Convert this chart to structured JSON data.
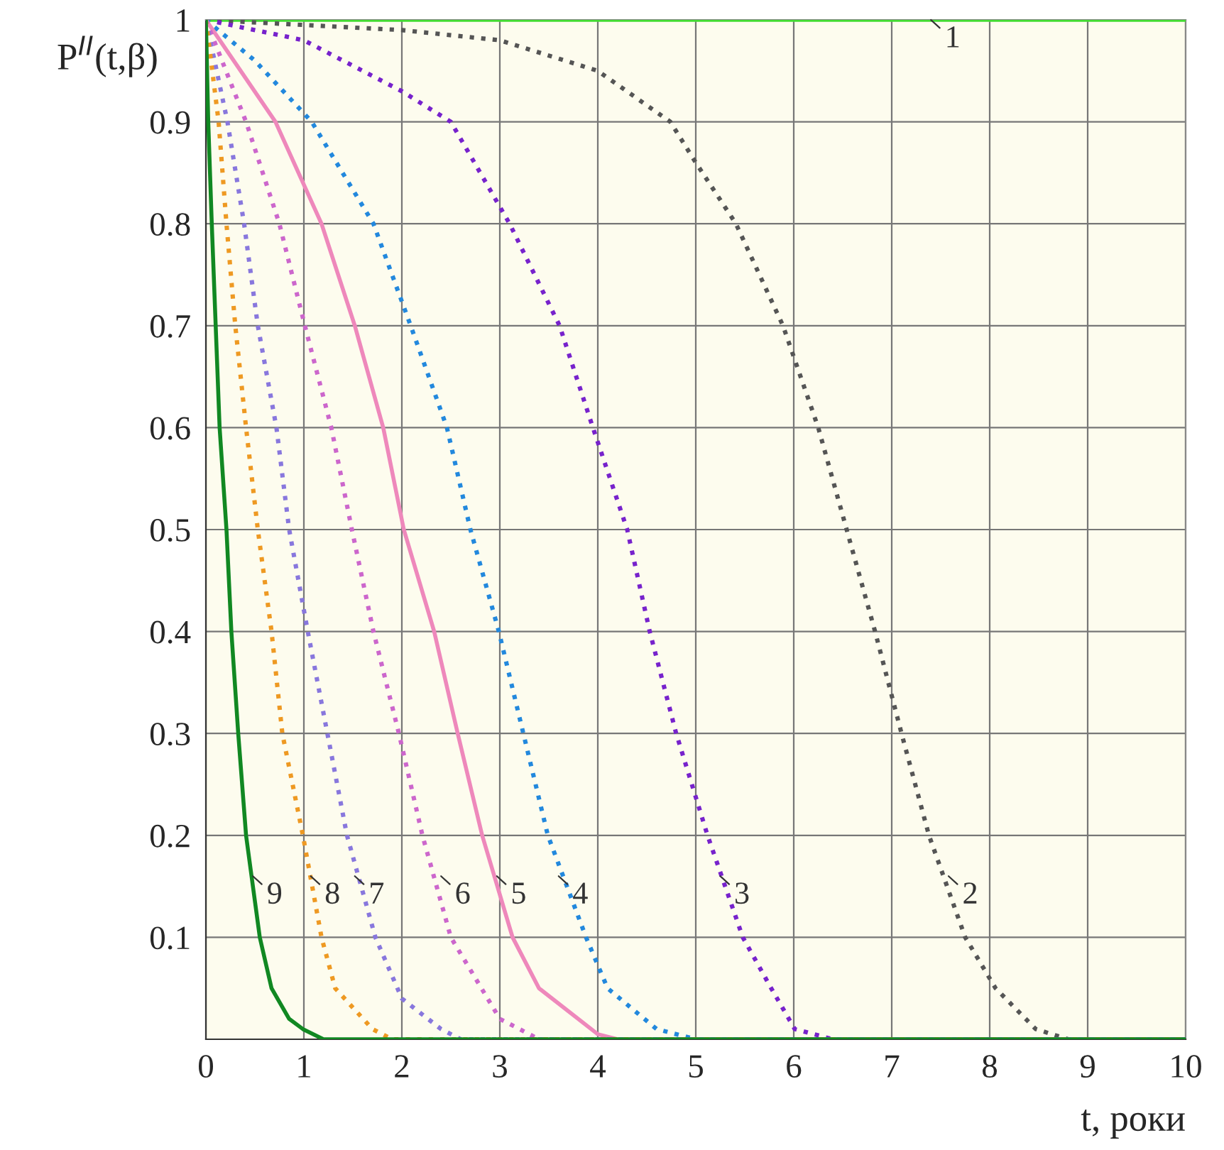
{
  "chart_data": {
    "type": "line",
    "ylabel": "P$^{II}$(t,β)",
    "xlabel": "t, роки",
    "xlim": [
      0,
      10
    ],
    "xticks": [
      0,
      1,
      2,
      3,
      4,
      5,
      6,
      7,
      8,
      9,
      10
    ],
    "ylim": [
      0,
      1
    ],
    "yticks": [
      0.1,
      0.2,
      0.3,
      0.4,
      0.5,
      0.6,
      0.7,
      0.8,
      0.9,
      1
    ],
    "grid": true,
    "series": [
      {
        "color": "#44dd33",
        "line_style": "solid",
        "x": [
          0,
          10
        ],
        "values": [
          1,
          1
        ]
      },
      {
        "color": "#555555",
        "line_style": "dotted",
        "x": [
          0,
          2,
          3,
          4,
          4.74,
          5,
          5.41,
          5.89,
          6.25,
          6.54,
          6.83,
          7.1,
          7.38,
          7.75,
          8.06,
          8.47,
          8.8,
          10
        ],
        "values": [
          1,
          0.99,
          0.98,
          0.95,
          0.9,
          0.86,
          0.8,
          0.7,
          0.6,
          0.5,
          0.4,
          0.3,
          0.2,
          0.1,
          0.05,
          0.01,
          0,
          0
        ]
      },
      {
        "color": "#7722cc",
        "line_style": "dotted",
        "x": [
          0,
          1,
          2,
          2.5,
          3.1,
          3.61,
          3.95,
          4.3,
          4.53,
          4.8,
          5.12,
          5.48,
          5.77,
          6.01,
          6.4,
          10
        ],
        "values": [
          1,
          0.98,
          0.93,
          0.9,
          0.8,
          0.7,
          0.6,
          0.5,
          0.4,
          0.3,
          0.2,
          0.1,
          0.05,
          0.01,
          0,
          0
        ]
      },
      {
        "color": "#2288dd",
        "line_style": "dotted",
        "x": [
          0,
          0.5,
          1.08,
          1.71,
          2.09,
          2.46,
          2.7,
          2.99,
          3.24,
          3.49,
          3.88,
          4.1,
          4.6,
          5.0,
          10
        ],
        "values": [
          1,
          0.96,
          0.9,
          0.8,
          0.7,
          0.6,
          0.5,
          0.4,
          0.3,
          0.2,
          0.1,
          0.05,
          0.01,
          0,
          0
        ]
      },
      {
        "color": "#ee88bb",
        "line_style": "solid",
        "x": [
          0,
          0.71,
          1.18,
          1.52,
          1.81,
          2.02,
          2.33,
          2.57,
          2.82,
          3.13,
          3.4,
          4.0,
          4.2,
          10
        ],
        "values": [
          1,
          0.9,
          0.8,
          0.7,
          0.6,
          0.5,
          0.4,
          0.3,
          0.2,
          0.1,
          0.05,
          0.005,
          0,
          0
        ]
      },
      {
        "color": "#cc66cc",
        "line_style": "dotted",
        "x": [
          0,
          0.41,
          0.75,
          1.01,
          1.28,
          1.49,
          1.71,
          1.97,
          2.21,
          2.5,
          3.0,
          3.4,
          10
        ],
        "values": [
          1,
          0.9,
          0.8,
          0.7,
          0.6,
          0.5,
          0.4,
          0.3,
          0.2,
          0.1,
          0.02,
          0,
          0
        ]
      },
      {
        "color": "#8877dd",
        "line_style": "dotted",
        "x": [
          0,
          0.22,
          0.39,
          0.53,
          0.72,
          0.85,
          1.04,
          1.24,
          1.44,
          1.73,
          2.0,
          2.4,
          2.6,
          10
        ],
        "values": [
          1,
          0.9,
          0.8,
          0.7,
          0.6,
          0.5,
          0.4,
          0.3,
          0.2,
          0.1,
          0.04,
          0.01,
          0,
          0
        ]
      },
      {
        "color": "#ee9922",
        "line_style": "dotted",
        "x": [
          0,
          0.13,
          0.21,
          0.3,
          0.41,
          0.53,
          0.67,
          0.78,
          0.99,
          1.18,
          1.32,
          1.7,
          1.9,
          10
        ],
        "values": [
          1,
          0.9,
          0.8,
          0.7,
          0.6,
          0.5,
          0.4,
          0.3,
          0.2,
          0.1,
          0.05,
          0.01,
          0,
          0
        ]
      },
      {
        "color": "#118822",
        "line_style": "solid",
        "x": [
          0,
          0.024,
          0.06,
          0.1,
          0.14,
          0.21,
          0.26,
          0.33,
          0.41,
          0.55,
          0.67,
          0.85,
          0.99,
          1.2,
          10
        ],
        "values": [
          1,
          0.9,
          0.8,
          0.7,
          0.6,
          0.5,
          0.4,
          0.3,
          0.2,
          0.1,
          0.05,
          0.02,
          0.01,
          0,
          0
        ]
      }
    ],
    "annotations": [
      {
        "text": "1",
        "x": 7.4,
        "y": 1
      },
      {
        "text": "2",
        "x": 7.58,
        "y": 0.16
      },
      {
        "text": "3",
        "x": 5.25,
        "y": 0.16
      },
      {
        "text": "4",
        "x": 3.6,
        "y": 0.16
      },
      {
        "text": "5",
        "x": 2.97,
        "y": 0.16
      },
      {
        "text": "6",
        "x": 2.4,
        "y": 0.16
      },
      {
        "text": "7",
        "x": 1.52,
        "y": 0.16
      },
      {
        "text": "8",
        "x": 1.07,
        "y": 0.16
      },
      {
        "text": "9",
        "x": 0.48,
        "y": 0.16
      }
    ]
  }
}
